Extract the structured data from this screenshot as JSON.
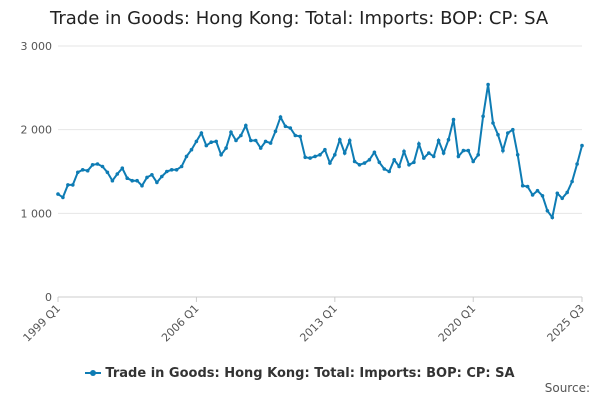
{
  "chart_data": {
    "type": "line",
    "title": "Trade in Goods: Hong Kong: Total: Imports: BOP: CP: SA",
    "xlabel": "",
    "ylabel": "",
    "ylim": [
      0,
      3000
    ],
    "yticks": [
      0,
      1000,
      2000,
      3000
    ],
    "ytick_labels": [
      "0",
      "1 000",
      "2 000",
      "3 000"
    ],
    "xtick_labels": [
      "1999 Q1",
      "2006 Q1",
      "2013 Q1",
      "2020 Q1",
      "2025 Q3"
    ],
    "xtick_positions": [
      0,
      28,
      56,
      84,
      106
    ],
    "grid": true,
    "legend_position": "bottom",
    "color": "#0e7cb4",
    "series": [
      {
        "name": "Trade in Goods: Hong Kong: Total: Imports: BOP: CP: SA",
        "x": [
          "1999 Q1",
          "1999 Q2",
          "1999 Q3",
          "1999 Q4",
          "2000 Q1",
          "2000 Q2",
          "2000 Q3",
          "2000 Q4",
          "2001 Q1",
          "2001 Q2",
          "2001 Q3",
          "2001 Q4",
          "2002 Q1",
          "2002 Q2",
          "2002 Q3",
          "2002 Q4",
          "2003 Q1",
          "2003 Q2",
          "2003 Q3",
          "2003 Q4",
          "2004 Q1",
          "2004 Q2",
          "2004 Q3",
          "2004 Q4",
          "2005 Q1",
          "2005 Q2",
          "2005 Q3",
          "2005 Q4",
          "2006 Q1",
          "2006 Q2",
          "2006 Q3",
          "2006 Q4",
          "2007 Q1",
          "2007 Q2",
          "2007 Q3",
          "2007 Q4",
          "2008 Q1",
          "2008 Q2",
          "2008 Q3",
          "2008 Q4",
          "2009 Q1",
          "2009 Q2",
          "2009 Q3",
          "2009 Q4",
          "2010 Q1",
          "2010 Q2",
          "2010 Q3",
          "2010 Q4",
          "2011 Q1",
          "2011 Q2",
          "2011 Q3",
          "2011 Q4",
          "2012 Q1",
          "2012 Q2",
          "2012 Q3",
          "2012 Q4",
          "2013 Q1",
          "2013 Q2",
          "2013 Q3",
          "2013 Q4",
          "2014 Q1",
          "2014 Q2",
          "2014 Q3",
          "2014 Q4",
          "2015 Q1",
          "2015 Q2",
          "2015 Q3",
          "2015 Q4",
          "2016 Q1",
          "2016 Q2",
          "2016 Q3",
          "2016 Q4",
          "2017 Q1",
          "2017 Q2",
          "2017 Q3",
          "2017 Q4",
          "2018 Q1",
          "2018 Q2",
          "2018 Q3",
          "2018 Q4",
          "2019 Q1",
          "2019 Q2",
          "2019 Q3",
          "2019 Q4",
          "2020 Q1",
          "2020 Q2",
          "2020 Q3",
          "2020 Q4",
          "2021 Q1",
          "2021 Q2",
          "2021 Q3",
          "2021 Q4",
          "2022 Q1",
          "2022 Q2",
          "2022 Q3",
          "2022 Q4",
          "2023 Q1",
          "2023 Q2",
          "2023 Q3",
          "2023 Q4",
          "2024 Q1",
          "2024 Q2",
          "2024 Q3",
          "2024 Q4",
          "2025 Q1",
          "2025 Q2",
          "2025 Q3"
        ],
        "values": [
          1230,
          1190,
          1340,
          1340,
          1490,
          1520,
          1510,
          1580,
          1590,
          1560,
          1490,
          1390,
          1470,
          1540,
          1420,
          1390,
          1390,
          1330,
          1430,
          1460,
          1370,
          1440,
          1500,
          1520,
          1520,
          1560,
          1680,
          1760,
          1860,
          1960,
          1810,
          1850,
          1860,
          1700,
          1780,
          1970,
          1870,
          1930,
          2050,
          1870,
          1870,
          1780,
          1860,
          1840,
          1980,
          2150,
          2040,
          2020,
          1930,
          1920,
          1670,
          1660,
          1680,
          1700,
          1760,
          1600,
          1700,
          1880,
          1720,
          1870,
          1620,
          1580,
          1600,
          1640,
          1730,
          1610,
          1530,
          1500,
          1640,
          1560,
          1740,
          1580,
          1610,
          1830,
          1660,
          1720,
          1680,
          1870,
          1720,
          1880,
          2120,
          1680,
          1750,
          1750,
          1620,
          1700,
          2160,
          2540,
          2080,
          1940,
          1750,
          1960,
          2000,
          1700,
          1330,
          1320,
          1220,
          1270,
          1210,
          1030,
          950,
          1240,
          1180,
          1250,
          1380,
          1590,
          1810
        ]
      }
    ],
    "legend": {
      "label": "Trade in Goods: Hong Kong: Total: Imports: BOP: CP: SA"
    },
    "source_label": "Source:"
  }
}
